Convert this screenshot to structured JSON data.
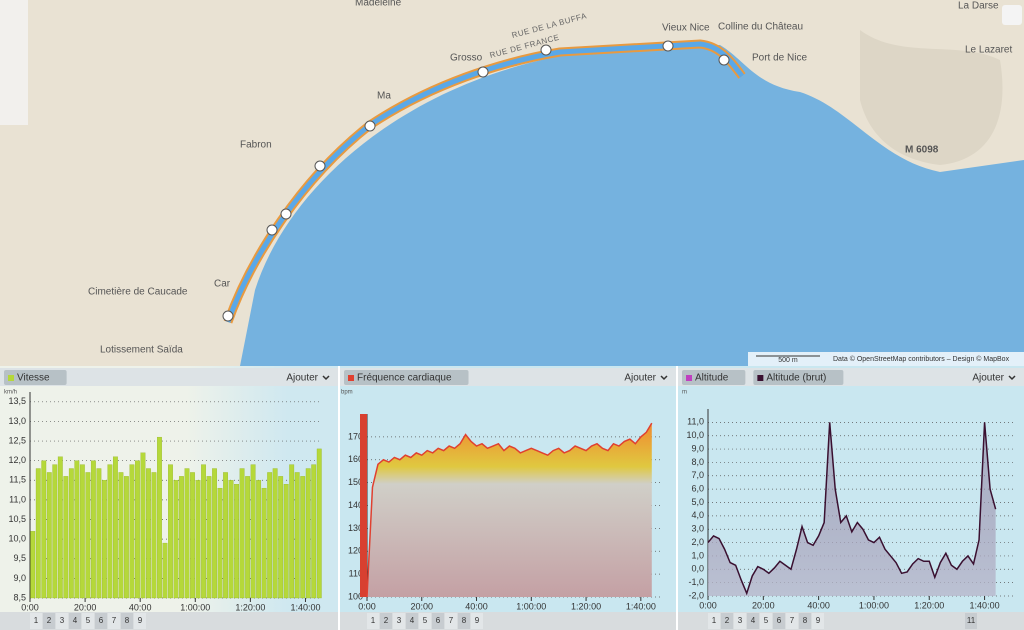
{
  "map": {
    "labels": [
      "Madeleine",
      "RUE DE LA BUFFA",
      "RUE DE FRANCE",
      "Grosso",
      "Vieux Nice",
      "Colline du Château",
      "Port de Nice",
      "Fabron",
      "Cimetière de Caucade",
      "Lotissement Saïda",
      "Car",
      "M 6098",
      "La Darse",
      "Le Lazaret",
      "Ma"
    ],
    "scale": "500 m",
    "attribution": "Data © OpenStreetMap contributors – Design © MapBox"
  },
  "chart_data": [
    {
      "type": "bar",
      "legend": [
        {
          "name": "Vitesse",
          "color": "#b5d83a"
        }
      ],
      "unit": "km/h",
      "add": "Ajouter",
      "color": "#b5d83a",
      "x": [
        0,
        2,
        4,
        6,
        8,
        10,
        12,
        14,
        16,
        18,
        20,
        22,
        24,
        26,
        28,
        30,
        32,
        34,
        36,
        38,
        40,
        42,
        44,
        46,
        48,
        50,
        52,
        54,
        56,
        58,
        60,
        62,
        64,
        66,
        68,
        70,
        72,
        74,
        76,
        78,
        80,
        82,
        84,
        86,
        88,
        90,
        92,
        94,
        96,
        98,
        100,
        102,
        104
      ],
      "values": [
        10.2,
        11.8,
        12.0,
        11.7,
        11.9,
        12.1,
        11.6,
        11.8,
        12.0,
        11.9,
        11.7,
        12.0,
        11.8,
        11.5,
        11.9,
        12.1,
        11.7,
        11.6,
        11.9,
        12.0,
        12.2,
        11.8,
        11.7,
        12.6,
        9.9,
        11.9,
        11.5,
        11.6,
        11.8,
        11.7,
        11.5,
        11.9,
        11.6,
        11.8,
        11.3,
        11.7,
        11.5,
        11.4,
        11.8,
        11.6,
        11.9,
        11.5,
        11.3,
        11.7,
        11.8,
        11.6,
        11.4,
        11.9,
        11.7,
        11.6,
        11.8,
        11.9,
        12.3
      ],
      "xlim": [
        0,
        106
      ],
      "ylim": [
        8.5,
        13.75
      ],
      "xticks": [
        {
          "value": 0,
          "label": "0:00"
        },
        {
          "value": 20,
          "label": "20:00"
        },
        {
          "value": 40,
          "label": "40:00"
        },
        {
          "value": 60,
          "label": "1:00:00"
        },
        {
          "value": 80,
          "label": "1:20:00"
        },
        {
          "value": 100,
          "label": "1:40:00"
        }
      ],
      "yticks": [
        {
          "value": 8.5,
          "label": "8,5"
        },
        {
          "value": 9,
          "label": "9,0"
        },
        {
          "value": 9.5,
          "label": "9,5"
        },
        {
          "value": 10,
          "label": "10,0"
        },
        {
          "value": 10.5,
          "label": "10,5"
        },
        {
          "value": 11,
          "label": "11,0"
        },
        {
          "value": 11.5,
          "label": "11,5"
        },
        {
          "value": 12,
          "label": "12,0"
        },
        {
          "value": 12.5,
          "label": "12,5"
        },
        {
          "value": 13,
          "label": "13,0"
        },
        {
          "value": 13.5,
          "label": "13,5"
        }
      ],
      "laps": [
        1,
        2,
        3,
        4,
        5,
        6,
        7,
        8,
        9
      ]
    },
    {
      "type": "area",
      "legend": [
        {
          "name": "Fréquence cardiaque",
          "color": "#e04030"
        }
      ],
      "unit": "bpm",
      "add": "Ajouter",
      "color": "#e04030",
      "x": [
        0,
        2,
        4,
        6,
        8,
        10,
        12,
        14,
        16,
        18,
        20,
        22,
        24,
        26,
        28,
        30,
        32,
        34,
        36,
        38,
        40,
        42,
        44,
        46,
        48,
        50,
        52,
        54,
        56,
        58,
        60,
        62,
        64,
        66,
        68,
        70,
        72,
        74,
        76,
        78,
        80,
        82,
        84,
        86,
        88,
        90,
        92,
        94,
        96,
        98,
        100,
        102,
        104
      ],
      "values": [
        100,
        148,
        158,
        160,
        159,
        161,
        160,
        162,
        161,
        163,
        162,
        164,
        163,
        165,
        164,
        166,
        165,
        167,
        171,
        168,
        166,
        167,
        165,
        166,
        167,
        164,
        166,
        165,
        163,
        164,
        165,
        164,
        163,
        162,
        164,
        165,
        163,
        164,
        166,
        165,
        164,
        166,
        167,
        165,
        164,
        167,
        166,
        168,
        169,
        167,
        170,
        172,
        176
      ],
      "xlim": [
        0,
        107
      ],
      "ylim": [
        100,
        180
      ],
      "xticks": [
        {
          "value": 0,
          "label": "0:00"
        },
        {
          "value": 20,
          "label": "20:00"
        },
        {
          "value": 40,
          "label": "40:00"
        },
        {
          "value": 60,
          "label": "1:00:00"
        },
        {
          "value": 80,
          "label": "1:20:00"
        },
        {
          "value": 100,
          "label": "1:40:00"
        }
      ],
      "yticks": [
        100,
        110,
        120,
        130,
        140,
        150,
        160,
        170
      ],
      "laps": [
        1,
        2,
        3,
        4,
        5,
        6,
        7,
        8,
        9
      ]
    },
    {
      "type": "line",
      "legend": [
        {
          "name": "Altitude",
          "color": "#c040c0"
        },
        {
          "name": "Altitude (brut)",
          "color": "#3a1030"
        }
      ],
      "unit": "m",
      "add": "Ajouter",
      "color": "#3a1030",
      "x": [
        0,
        2,
        4,
        6,
        8,
        10,
        12,
        14,
        16,
        18,
        20,
        22,
        24,
        26,
        28,
        30,
        32,
        34,
        36,
        38,
        40,
        42,
        44,
        46,
        48,
        50,
        52,
        54,
        56,
        58,
        60,
        62,
        64,
        66,
        68,
        70,
        72,
        74,
        76,
        78,
        80,
        82,
        84,
        86,
        88,
        90,
        92,
        94,
        96,
        98,
        100,
        102,
        104
      ],
      "values": [
        2.0,
        2.5,
        2.3,
        1.5,
        0.5,
        0.3,
        -0.8,
        -1.8,
        -0.5,
        0.2,
        0.0,
        -0.3,
        0.1,
        0.6,
        0.3,
        0.0,
        1.5,
        3.2,
        2.0,
        1.8,
        2.5,
        3.5,
        11.0,
        6.0,
        3.5,
        4.0,
        2.8,
        3.5,
        3.0,
        2.2,
        2.0,
        2.4,
        1.5,
        1.0,
        0.5,
        -0.3,
        -0.2,
        0.4,
        0.8,
        0.6,
        0.6,
        -0.6,
        0.5,
        1.2,
        0.3,
        0.0,
        0.6,
        1.0,
        0.4,
        2.2,
        11.0,
        6.0,
        4.5
      ],
      "xlim": [
        0,
        111
      ],
      "ylim": [
        -2,
        12
      ],
      "xticks": [
        {
          "value": 0,
          "label": "0:00"
        },
        {
          "value": 20,
          "label": "20:00"
        },
        {
          "value": 40,
          "label": "40:00"
        },
        {
          "value": 60,
          "label": "1:00:00"
        },
        {
          "value": 80,
          "label": "1:20:00"
        },
        {
          "value": 100,
          "label": "1:40:00"
        }
      ],
      "yticks": [
        {
          "value": -2,
          "label": "-2,0"
        },
        {
          "value": -1,
          "label": "-1,0"
        },
        {
          "value": 0,
          "label": "0,0"
        },
        {
          "value": 1,
          "label": "1,0"
        },
        {
          "value": 2,
          "label": "2,0"
        },
        {
          "value": 3,
          "label": "3,0"
        },
        {
          "value": 4,
          "label": "4,0"
        },
        {
          "value": 5,
          "label": "5,0"
        },
        {
          "value": 6,
          "label": "6,0"
        },
        {
          "value": 7,
          "label": "7,0"
        },
        {
          "value": 8,
          "label": "8,0"
        },
        {
          "value": 9,
          "label": "9,0"
        },
        {
          "value": 10,
          "label": "10,0"
        },
        {
          "value": 11,
          "label": "11,0"
        }
      ],
      "laps": [
        1,
        2,
        3,
        4,
        5,
        6,
        7,
        8,
        9,
        11
      ]
    }
  ]
}
